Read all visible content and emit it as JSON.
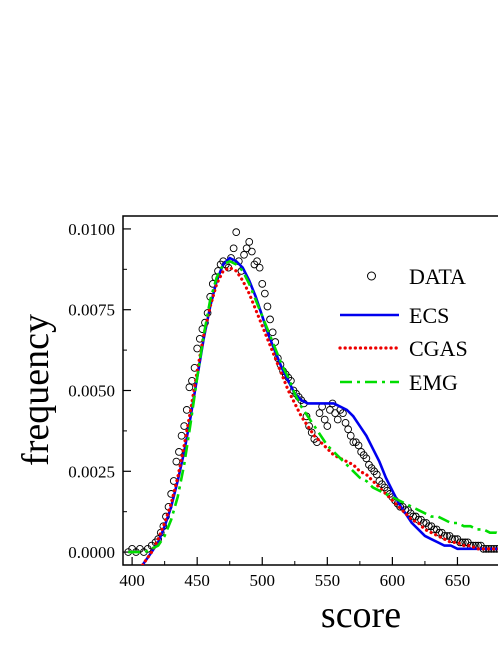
{
  "chart_data": {
    "type": "line",
    "title": "",
    "xlabel": "score",
    "ylabel": "frequency",
    "xlim": [
      393,
      685
    ],
    "ylim": [
      -0.0004,
      0.0104
    ],
    "grid": false,
    "legend_position": "right",
    "x_ticks": [
      400,
      450,
      500,
      550,
      600,
      650
    ],
    "x_tick_labels": [
      "400",
      "450",
      "500",
      "550",
      "600",
      "650"
    ],
    "y_ticks": [
      0.0,
      0.0025,
      0.005,
      0.0075,
      0.01
    ],
    "y_tick_labels": [
      "0.0000",
      "0.0025",
      "0.0050",
      "0.0075",
      "0.0100"
    ],
    "legend": [
      "DATA",
      "ECS",
      "CGAS",
      "EMG"
    ],
    "series": [
      {
        "name": "DATA",
        "style": "open-circle",
        "color": "#000000",
        "x": [
          397,
          400,
          403,
          406,
          409,
          412,
          415,
          418,
          420,
          422,
          424,
          426,
          428,
          430,
          432,
          434,
          436,
          438,
          440,
          442,
          444,
          446,
          448,
          450,
          452,
          454,
          456,
          458,
          460,
          462,
          464,
          466,
          468,
          470,
          472,
          474,
          476,
          478,
          480,
          482,
          484,
          486,
          488,
          490,
          492,
          494,
          496,
          498,
          500,
          502,
          504,
          506,
          508,
          510,
          512,
          514,
          516,
          518,
          520,
          522,
          524,
          526,
          528,
          530,
          532,
          534,
          536,
          538,
          540,
          542,
          544,
          546,
          548,
          550,
          552,
          554,
          556,
          558,
          560,
          562,
          564,
          566,
          568,
          570,
          572,
          574,
          576,
          578,
          580,
          582,
          584,
          586,
          588,
          590,
          592,
          594,
          596,
          598,
          600,
          602,
          604,
          606,
          608,
          610,
          612,
          614,
          616,
          618,
          620,
          622,
          624,
          626,
          628,
          630,
          632,
          634,
          636,
          638,
          640,
          642,
          644,
          646,
          648,
          650,
          652,
          654,
          656,
          658,
          660,
          662,
          664,
          666,
          668,
          670,
          672,
          674,
          676,
          678,
          680,
          682
        ],
        "y": [
          0.0,
          0.0001,
          0.0,
          0.0001,
          0.0,
          0.0001,
          0.0002,
          0.0003,
          0.0004,
          0.0006,
          0.0008,
          0.0011,
          0.0014,
          0.0018,
          0.0022,
          0.0028,
          0.0031,
          0.0036,
          0.0039,
          0.0044,
          0.0051,
          0.0053,
          0.0057,
          0.0063,
          0.0066,
          0.0069,
          0.0071,
          0.0074,
          0.0079,
          0.0083,
          0.0085,
          0.0087,
          0.0089,
          0.009,
          0.0089,
          0.0088,
          0.0091,
          0.0094,
          0.0099,
          0.009,
          0.0087,
          0.0092,
          0.0094,
          0.0096,
          0.0093,
          0.0089,
          0.009,
          0.0088,
          0.0083,
          0.008,
          0.0076,
          0.0072,
          0.0068,
          0.0065,
          0.006,
          0.0058,
          0.0056,
          0.0055,
          0.0054,
          0.0053,
          0.005,
          0.0049,
          0.0048,
          0.0047,
          0.0046,
          0.0042,
          0.0039,
          0.0037,
          0.0035,
          0.0034,
          0.0043,
          0.0045,
          0.0041,
          0.0039,
          0.0044,
          0.0046,
          0.0043,
          0.0041,
          0.0044,
          0.0043,
          0.004,
          0.0038,
          0.0036,
          0.0034,
          0.0034,
          0.0033,
          0.0031,
          0.003,
          0.0029,
          0.0027,
          0.0026,
          0.0025,
          0.0024,
          0.0022,
          0.0021,
          0.002,
          0.0019,
          0.0018,
          0.0017,
          0.0016,
          0.0015,
          0.0014,
          0.0014,
          0.0013,
          0.0013,
          0.0012,
          0.0011,
          0.0011,
          0.001,
          0.001,
          0.0009,
          0.0009,
          0.0008,
          0.0008,
          0.0007,
          0.0007,
          0.0006,
          0.0006,
          0.0005,
          0.0005,
          0.0005,
          0.0004,
          0.0004,
          0.0004,
          0.0003,
          0.0003,
          0.0003,
          0.0003,
          0.0002,
          0.0002,
          0.0002,
          0.0002,
          0.0002,
          0.0001,
          0.0001,
          0.0001,
          0.0001,
          0.0001,
          0.0001,
          0.0001
        ]
      },
      {
        "name": "ECS",
        "style": "solid",
        "color": "#0000ee",
        "x": [
          408,
          415,
          420,
          425,
          430,
          435,
          440,
          445,
          450,
          455,
          460,
          465,
          470,
          475,
          480,
          485,
          490,
          495,
          500,
          505,
          510,
          515,
          520,
          525,
          530,
          535,
          540,
          545,
          550,
          555,
          560,
          565,
          570,
          575,
          580,
          585,
          590,
          595,
          600,
          605,
          610,
          615,
          620,
          625,
          630,
          635,
          640,
          645,
          650,
          655,
          660,
          665,
          670,
          675,
          680,
          685
        ],
        "y": [
          -0.0004,
          0.0,
          0.0003,
          0.0008,
          0.0014,
          0.0022,
          0.0031,
          0.0042,
          0.0054,
          0.0066,
          0.0076,
          0.0084,
          0.0089,
          0.0091,
          0.009,
          0.0088,
          0.0084,
          0.0079,
          0.0073,
          0.0067,
          0.0062,
          0.0057,
          0.0053,
          0.0049,
          0.0047,
          0.0046,
          0.0046,
          0.0046,
          0.0046,
          0.0046,
          0.0045,
          0.0044,
          0.0042,
          0.0039,
          0.0036,
          0.0032,
          0.0028,
          0.0023,
          0.0019,
          0.0015,
          0.0012,
          0.0009,
          0.0007,
          0.0005,
          0.0004,
          0.0003,
          0.0002,
          0.0002,
          0.0001,
          0.0001,
          0.0001,
          0.0001,
          0.0001,
          0.0001,
          0.0001,
          0.0001
        ]
      },
      {
        "name": "CGAS",
        "style": "dotted",
        "color": "#ee0000",
        "x": [
          408,
          415,
          420,
          425,
          430,
          435,
          440,
          445,
          450,
          455,
          460,
          465,
          470,
          475,
          480,
          485,
          490,
          495,
          500,
          505,
          510,
          515,
          520,
          525,
          530,
          535,
          540,
          545,
          550,
          555,
          560,
          565,
          570,
          575,
          580,
          585,
          590,
          595,
          600,
          605,
          610,
          615,
          620,
          625,
          630,
          635,
          640,
          645,
          650,
          655,
          660,
          665,
          670,
          675,
          680,
          685
        ],
        "y": [
          -0.0004,
          0.0,
          0.0004,
          0.0009,
          0.0015,
          0.0023,
          0.0033,
          0.0044,
          0.0056,
          0.0067,
          0.0076,
          0.0083,
          0.0087,
          0.0088,
          0.0087,
          0.0084,
          0.008,
          0.0075,
          0.007,
          0.0065,
          0.006,
          0.0055,
          0.005,
          0.0046,
          0.0042,
          0.0039,
          0.0036,
          0.0034,
          0.0032,
          0.003,
          0.0029,
          0.0028,
          0.0027,
          0.0025,
          0.0024,
          0.0022,
          0.002,
          0.0018,
          0.0016,
          0.0014,
          0.0012,
          0.001,
          0.0009,
          0.0007,
          0.0006,
          0.0005,
          0.0004,
          0.0003,
          0.0003,
          0.0002,
          0.0002,
          0.0001,
          0.0001,
          0.0001,
          0.0001,
          0.0001
        ]
      },
      {
        "name": "EMG",
        "style": "dash-dot",
        "color": "#00dd00",
        "x": [
          397,
          405,
          410,
          415,
          420,
          425,
          430,
          435,
          440,
          445,
          450,
          455,
          460,
          465,
          470,
          475,
          480,
          485,
          490,
          495,
          500,
          505,
          510,
          515,
          520,
          525,
          530,
          535,
          540,
          545,
          550,
          555,
          560,
          565,
          570,
          575,
          580,
          585,
          590,
          595,
          600,
          605,
          610,
          615,
          620,
          625,
          630,
          635,
          640,
          645,
          650,
          655,
          660,
          665,
          670,
          675,
          680,
          685
        ],
        "y": [
          0.0,
          0.0,
          0.0,
          0.0001,
          0.0002,
          0.0005,
          0.001,
          0.0017,
          0.0027,
          0.004,
          0.0054,
          0.0067,
          0.0078,
          0.0085,
          0.0089,
          0.009,
          0.0089,
          0.0087,
          0.0083,
          0.0078,
          0.0073,
          0.0068,
          0.0063,
          0.0058,
          0.0054,
          0.0049,
          0.0045,
          0.0042,
          0.0039,
          0.0036,
          0.0033,
          0.0031,
          0.0029,
          0.0027,
          0.0025,
          0.0023,
          0.0022,
          0.002,
          0.0019,
          0.0018,
          0.0017,
          0.0016,
          0.0015,
          0.0014,
          0.0013,
          0.0012,
          0.0011,
          0.0011,
          0.001,
          0.0009,
          0.0009,
          0.0008,
          0.0008,
          0.0007,
          0.0007,
          0.0006,
          0.0006,
          0.0005
        ]
      }
    ]
  }
}
